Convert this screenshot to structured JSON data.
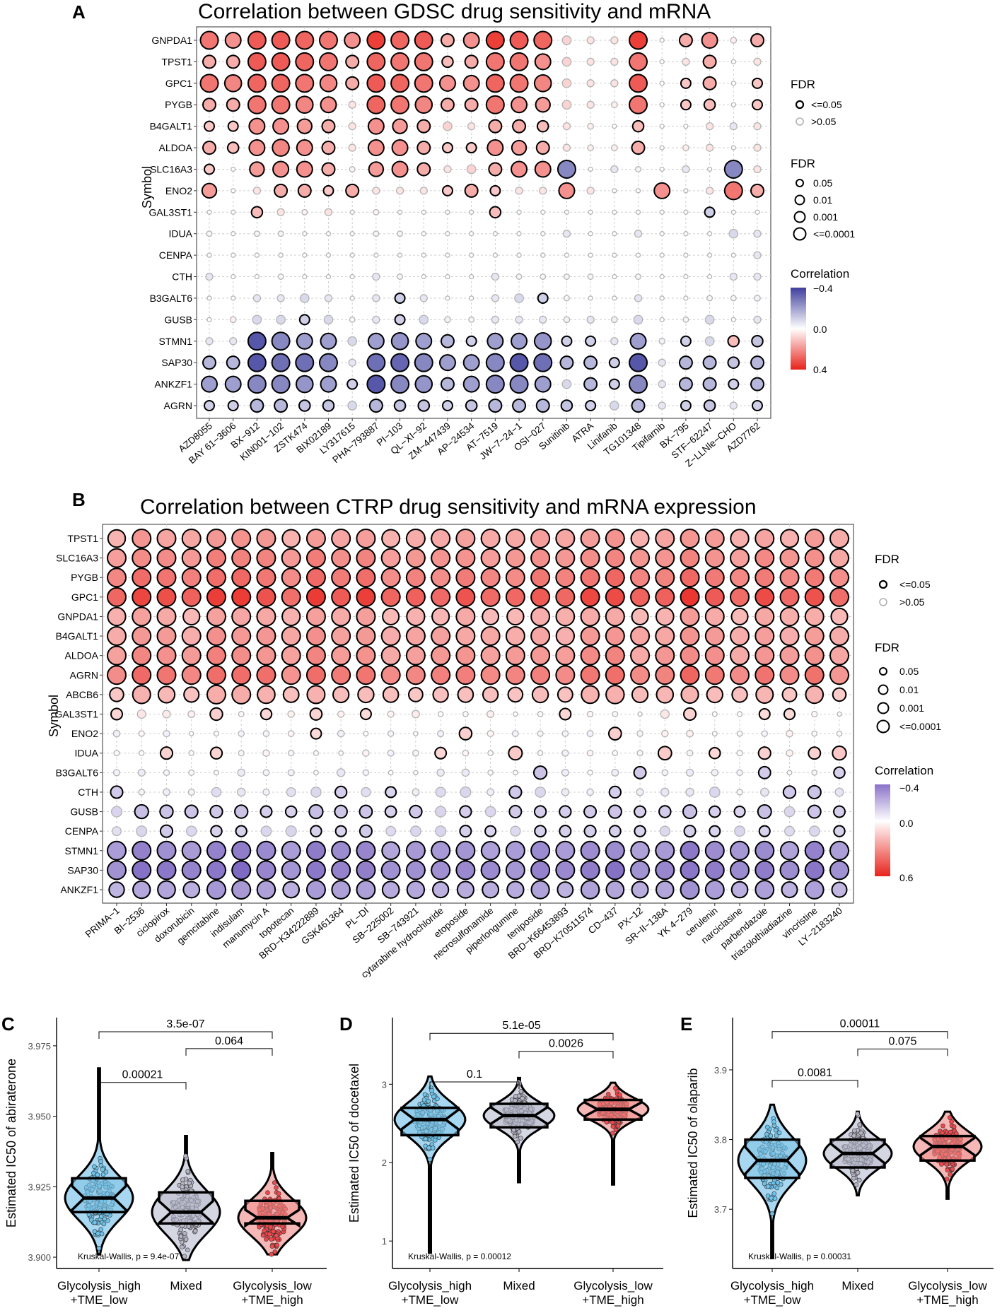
{
  "panels": {
    "A": {
      "label": "A",
      "title": "Correlation between GDSC drug sensitivity and mRNA"
    },
    "B": {
      "label": "B",
      "title": "Correlation between CTRP drug sensitivity and mRNA expression"
    },
    "C": {
      "label": "C"
    },
    "D": {
      "label": "D"
    },
    "E": {
      "label": "E"
    }
  },
  "common": {
    "y_axis_title": "Symbol",
    "legend_fdr_title": "FDR",
    "legend_fdr_border_items": [
      "<=0.05",
      ">0.05"
    ],
    "legend_fdr_size_items": [
      "0.05",
      "0.01",
      "0.001",
      "<=0.0001"
    ],
    "legend_corr_title": "Correlation"
  },
  "colors": {
    "negative": "#3f3f9e",
    "neutral": "#ffffff",
    "positive": "#e8231c",
    "box_high": "#7fc3e6",
    "box_mixed": "#b9bdd0",
    "box_low": "#f08f8c"
  },
  "chart_data": [
    {
      "id": "A",
      "type": "bubble-heatmap",
      "title": "Correlation between GDSC drug sensitivity and mRNA",
      "ylabel": "Symbol",
      "genes": [
        "GNPDA1",
        "TPST1",
        "GPC1",
        "PYGB",
        "B4GALT1",
        "ALDOA",
        "SLC16A3",
        "ENO2",
        "GAL3ST1",
        "IDUA",
        "CENPA",
        "CTH",
        "B3GALT6",
        "GUSB",
        "STMN1",
        "SAP30",
        "ANKZF1",
        "AGRN"
      ],
      "drugs": [
        "AZD8055",
        "BAY 61−3606",
        "BX−912",
        "KIN001−102",
        "ZSTK474",
        "BIX02189",
        "LY317615",
        "PHA−793887",
        "PI−103",
        "QL−XI−92",
        "ZM−447439",
        "AP−24534",
        "AT−7519",
        "JW−7−24−1",
        "OSI−027",
        "Sunitinib",
        "ATRA",
        "Linifanib",
        "TG101348",
        "Tipifarnib",
        "BX−795",
        "STF−62247",
        "Z−LLNle−CHO",
        "AZD7762"
      ],
      "legend_corr_ticks": [
        "−0.4",
        "0.0",
        "0.4"
      ],
      "corr_range": [
        -0.4,
        0.4
      ],
      "correlation_matrix": [
        [
          0.25,
          0.2,
          0.3,
          0.3,
          0.28,
          0.25,
          0.2,
          0.35,
          0.28,
          0.3,
          0.15,
          0.2,
          0.35,
          0.3,
          0.28,
          0.08,
          0.05,
          0.05,
          0.35,
          0.0,
          0.15,
          0.2,
          0.03,
          0.15
        ],
        [
          0.15,
          0.15,
          0.3,
          0.3,
          0.28,
          0.25,
          0.15,
          0.28,
          0.25,
          0.25,
          0.12,
          0.15,
          0.25,
          0.25,
          0.2,
          0.08,
          0.05,
          0.05,
          0.25,
          0.0,
          0.05,
          0.15,
          0.0,
          0.05
        ],
        [
          0.25,
          0.22,
          0.28,
          0.28,
          0.25,
          0.22,
          0.15,
          0.3,
          0.28,
          0.25,
          0.2,
          0.2,
          0.28,
          0.25,
          0.22,
          0.08,
          0.05,
          0.05,
          0.3,
          0.0,
          0.1,
          0.15,
          0.0,
          0.1
        ],
        [
          0.15,
          0.15,
          0.25,
          0.25,
          0.22,
          0.2,
          0.05,
          0.28,
          0.25,
          0.22,
          0.15,
          0.15,
          0.25,
          0.2,
          0.18,
          0.08,
          0.05,
          0.03,
          0.25,
          0.0,
          0.1,
          0.12,
          0.0,
          0.1
        ],
        [
          0.1,
          0.1,
          0.2,
          0.2,
          0.18,
          0.15,
          0.05,
          0.2,
          0.18,
          0.15,
          0.08,
          0.05,
          0.15,
          0.15,
          0.12,
          0.05,
          0.03,
          0.0,
          0.12,
          0.0,
          0.0,
          0.05,
          -0.05,
          0.05
        ],
        [
          0.15,
          0.12,
          0.2,
          0.22,
          0.2,
          0.15,
          0.05,
          0.2,
          0.2,
          0.15,
          0.1,
          0.1,
          0.2,
          0.18,
          0.15,
          0.05,
          0.03,
          0.03,
          0.15,
          0.0,
          0.03,
          0.05,
          0.0,
          0.05
        ],
        [
          0.1,
          0.0,
          0.18,
          0.2,
          0.2,
          0.15,
          0.02,
          0.18,
          0.2,
          0.15,
          0.05,
          0.08,
          0.15,
          0.2,
          0.2,
          -0.25,
          0.0,
          -0.05,
          -0.02,
          0.0,
          -0.05,
          0.0,
          -0.25,
          0.05
        ],
        [
          0.18,
          0.0,
          0.05,
          0.15,
          0.15,
          0.1,
          0.15,
          0.05,
          0.05,
          0.05,
          0.1,
          0.15,
          0.1,
          0.05,
          0.05,
          0.2,
          0.05,
          0.0,
          0.0,
          0.2,
          0.0,
          0.05,
          0.25,
          0.15
        ],
        [
          0.0,
          0.0,
          0.12,
          0.05,
          0.02,
          0.05,
          0.0,
          0.02,
          0.0,
          0.0,
          0.0,
          0.0,
          0.12,
          0.0,
          0.0,
          0.0,
          0.0,
          0.0,
          0.0,
          0.0,
          0.0,
          -0.1,
          0.0,
          0.0
        ],
        [
          -0.02,
          0.0,
          -0.02,
          -0.02,
          0.0,
          0.0,
          0.0,
          -0.02,
          -0.02,
          0.0,
          0.0,
          0.0,
          0.0,
          0.0,
          0.0,
          -0.05,
          0.0,
          0.0,
          -0.05,
          0.0,
          0.0,
          0.0,
          -0.08,
          -0.05
        ],
        [
          0.0,
          0.0,
          0.0,
          0.0,
          0.0,
          0.0,
          0.0,
          0.0,
          0.0,
          0.0,
          0.0,
          0.0,
          0.0,
          0.0,
          0.0,
          0.0,
          0.0,
          0.0,
          0.0,
          0.0,
          0.0,
          0.0,
          0.0,
          -0.05
        ],
        [
          -0.05,
          0.0,
          0.0,
          -0.02,
          0.0,
          0.0,
          0.0,
          -0.05,
          -0.02,
          0.0,
          0.0,
          0.0,
          -0.05,
          -0.02,
          -0.02,
          -0.02,
          -0.02,
          0.0,
          -0.02,
          0.0,
          0.0,
          0.0,
          -0.05,
          -0.05
        ],
        [
          0.0,
          0.0,
          -0.05,
          -0.05,
          -0.08,
          -0.05,
          0.0,
          -0.05,
          -0.1,
          -0.05,
          0.0,
          0.0,
          -0.05,
          -0.08,
          -0.1,
          -0.02,
          0.0,
          0.0,
          -0.05,
          0.0,
          0.0,
          -0.02,
          -0.02,
          -0.03
        ],
        [
          0.0,
          0.03,
          -0.08,
          -0.08,
          -0.1,
          -0.08,
          -0.02,
          -0.05,
          -0.1,
          -0.08,
          -0.03,
          -0.02,
          -0.05,
          -0.05,
          -0.05,
          -0.03,
          -0.05,
          -0.03,
          -0.08,
          0.0,
          -0.02,
          -0.08,
          0.0,
          -0.05
        ],
        [
          -0.05,
          -0.05,
          -0.35,
          -0.25,
          -0.2,
          -0.2,
          -0.08,
          -0.2,
          -0.22,
          -0.2,
          -0.15,
          -0.1,
          -0.2,
          -0.2,
          -0.22,
          -0.1,
          -0.1,
          -0.05,
          -0.2,
          -0.03,
          -0.1,
          -0.08,
          0.12,
          -0.12
        ],
        [
          -0.15,
          -0.15,
          -0.35,
          -0.3,
          -0.3,
          -0.25,
          -0.05,
          -0.3,
          -0.32,
          -0.25,
          -0.2,
          -0.2,
          -0.25,
          -0.35,
          -0.3,
          -0.15,
          -0.15,
          -0.1,
          -0.35,
          -0.05,
          -0.15,
          -0.15,
          -0.12,
          -0.15
        ],
        [
          -0.2,
          -0.2,
          -0.25,
          -0.25,
          -0.22,
          -0.2,
          -0.1,
          -0.35,
          -0.25,
          -0.22,
          -0.15,
          -0.2,
          -0.25,
          -0.25,
          -0.2,
          -0.08,
          -0.15,
          -0.1,
          -0.25,
          -0.05,
          -0.15,
          -0.15,
          -0.1,
          -0.15
        ],
        [
          -0.1,
          -0.1,
          -0.15,
          -0.15,
          -0.12,
          -0.12,
          -0.08,
          -0.15,
          -0.12,
          -0.12,
          -0.1,
          -0.12,
          -0.15,
          -0.15,
          -0.15,
          -0.12,
          -0.1,
          -0.08,
          -0.15,
          -0.05,
          -0.1,
          -0.12,
          -0.05,
          -0.1
        ]
      ],
      "fdr_rule": "bubbles with |r| >= 0.10 drawn with black border (FDR <= 0.05), others grey"
    },
    {
      "id": "B",
      "type": "bubble-heatmap",
      "title": "Correlation between CTRP drug sensitivity and mRNA expression",
      "ylabel": "Symbol",
      "genes": [
        "TPST1",
        "SLC16A3",
        "PYGB",
        "GPC1",
        "GNPDA1",
        "B4GALT1",
        "ALDOA",
        "AGRN",
        "ABCB6",
        "GAL3ST1",
        "ENO2",
        "IDUA",
        "B3GALT6",
        "CTH",
        "GUSB",
        "CENPA",
        "STMN1",
        "SAP30",
        "ANKZF1"
      ],
      "drugs": [
        "PRIMA−1",
        "BI−2536",
        "ciclopirox",
        "doxorubicin",
        "gemcitabine",
        "indisulam",
        "manumycin A",
        "topotecan",
        "BRD−K34222889",
        "GSK461364",
        "PL−DI",
        "SB−225002",
        "SB−743921",
        "cytarabine hydrochloride",
        "etoposide",
        "necrosulfonamide",
        "piperlongumine",
        "teniposide",
        "BRD−K66453893",
        "BRD−K70511574",
        "CD−437",
        "PX−12",
        "SR−II−138A",
        "YK 4−279",
        "cerulenin",
        "narciclasine",
        "parbendazole",
        "triazolothiadiazine",
        "vincristine",
        "LY−2183240"
      ],
      "legend_corr_ticks": [
        "−0.4",
        "0.0",
        "0.6"
      ],
      "corr_range": [
        -0.4,
        0.6
      ],
      "row_mean_correlation": [
        0.25,
        0.3,
        0.35,
        0.45,
        0.22,
        0.25,
        0.28,
        0.35,
        0.18,
        0.03,
        0.0,
        0.0,
        -0.02,
        -0.06,
        -0.12,
        -0.1,
        -0.25,
        -0.28,
        -0.2
      ],
      "fdr_rule": "bubbles with |r| >= 0.10 drawn with black border (FDR <= 0.05), others grey"
    },
    {
      "id": "C",
      "type": "violin-box",
      "ylabel": "Estimated IC50 of abiraterone",
      "categories": [
        "Glycolysis_high\n+TME_low",
        "Mixed",
        "Glycolysis_low\n+TME_high"
      ],
      "yticks": [
        "3.900",
        "3.925",
        "3.950",
        "3.975"
      ],
      "ylim": [
        3.896,
        3.985
      ],
      "boxes": [
        {
          "q1": 3.916,
          "median": 3.921,
          "q3": 3.928,
          "min": 3.901,
          "max": 3.967
        },
        {
          "q1": 3.912,
          "median": 3.916,
          "q3": 3.923,
          "min": 3.899,
          "max": 3.943
        },
        {
          "q1": 3.912,
          "median": 3.914,
          "q3": 3.92,
          "min": 3.901,
          "max": 3.937
        }
      ],
      "comparisons": [
        {
          "from": 0,
          "to": 2,
          "p": "3.5e-07",
          "y": 3.98
        },
        {
          "from": 1,
          "to": 2,
          "p": "0.064",
          "y": 3.974
        },
        {
          "from": 0,
          "to": 1,
          "p": "0.00021",
          "y": 3.962
        }
      ],
      "kruskal": "Kruskal-Wallis, p = 9.4e-07"
    },
    {
      "id": "D",
      "type": "violin-box",
      "ylabel": "Estimated IC50 of docetaxel",
      "categories": [
        "Glycolysis_high\n+TME_low",
        "Mixed",
        "Glycolysis_low\n+TME_high"
      ],
      "yticks": [
        "1",
        "2",
        "3"
      ],
      "ylim": [
        0.65,
        3.85
      ],
      "boxes": [
        {
          "q1": 2.35,
          "median": 2.55,
          "q3": 2.7,
          "min": 0.85,
          "max": 3.1
        },
        {
          "q1": 2.45,
          "median": 2.6,
          "q3": 2.75,
          "min": 1.75,
          "max": 3.08
        },
        {
          "q1": 2.55,
          "median": 2.68,
          "q3": 2.8,
          "min": 1.72,
          "max": 3.02
        }
      ],
      "comparisons": [
        {
          "from": 0,
          "to": 2,
          "p": "5.1e-05",
          "y": 3.65
        },
        {
          "from": 1,
          "to": 2,
          "p": "0.0026",
          "y": 3.42
        },
        {
          "from": 0,
          "to": 1,
          "p": "0.1",
          "y": 3.03
        }
      ],
      "kruskal": "Kruskal-Wallis, p = 0.00012"
    },
    {
      "id": "E",
      "type": "violin-box",
      "ylabel": "Estimated IC50 of olaparib",
      "categories": [
        "Glycolysis_high\n+TME_low",
        "Mixed",
        "Glycolysis_low\n+TME_high"
      ],
      "yticks": [
        "3.7",
        "3.8",
        "3.9"
      ],
      "ylim": [
        3.615,
        3.975
      ],
      "boxes": [
        {
          "q1": 3.745,
          "median": 3.77,
          "q3": 3.8,
          "min": 3.63,
          "max": 3.85
        },
        {
          "q1": 3.76,
          "median": 3.78,
          "q3": 3.8,
          "min": 3.72,
          "max": 3.84
        },
        {
          "q1": 3.77,
          "median": 3.79,
          "q3": 3.805,
          "min": 3.715,
          "max": 3.84
        }
      ],
      "comparisons": [
        {
          "from": 0,
          "to": 2,
          "p": "0.00011",
          "y": 3.955
        },
        {
          "from": 1,
          "to": 2,
          "p": "0.075",
          "y": 3.93
        },
        {
          "from": 0,
          "to": 1,
          "p": "0.0081",
          "y": 3.885
        }
      ],
      "kruskal": "Kruskal-Wallis, p = 0.00031"
    }
  ]
}
